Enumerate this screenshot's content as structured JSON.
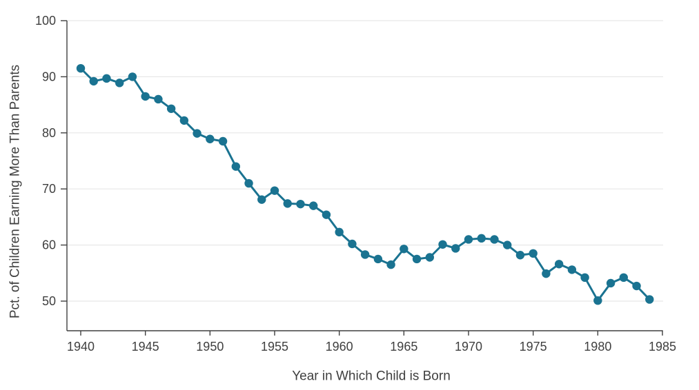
{
  "chart_data": {
    "type": "line",
    "title": "",
    "xlabel": "Year in Which Child is Born",
    "ylabel": "Pct. of Children Earning More Than Parents",
    "x": [
      1940,
      1941,
      1942,
      1943,
      1944,
      1945,
      1946,
      1947,
      1948,
      1949,
      1950,
      1951,
      1952,
      1953,
      1954,
      1955,
      1956,
      1957,
      1958,
      1959,
      1960,
      1961,
      1962,
      1963,
      1964,
      1965,
      1966,
      1967,
      1968,
      1969,
      1970,
      1971,
      1972,
      1973,
      1974,
      1975,
      1976,
      1977,
      1978,
      1979,
      1980,
      1981,
      1982,
      1983,
      1984
    ],
    "values": [
      91.5,
      89.2,
      89.7,
      88.9,
      90.0,
      86.5,
      86.0,
      84.3,
      82.2,
      79.9,
      78.9,
      78.5,
      74.0,
      71.0,
      68.1,
      69.7,
      67.4,
      67.3,
      67.0,
      65.4,
      62.3,
      60.2,
      58.3,
      57.5,
      56.5,
      59.3,
      57.5,
      57.8,
      60.1,
      59.4,
      61.0,
      61.2,
      61.0,
      60.0,
      58.2,
      58.5,
      54.9,
      56.6,
      55.6,
      54.2,
      50.1,
      53.2,
      54.2,
      52.7,
      50.3
    ],
    "xlim": [
      1940,
      1985
    ],
    "ylim": [
      50,
      100
    ],
    "xticks": [
      1940,
      1945,
      1950,
      1955,
      1960,
      1965,
      1970,
      1975,
      1980,
      1985
    ],
    "yticks": [
      50,
      60,
      70,
      80,
      90,
      100
    ],
    "grid": "horizontal",
    "legend": "none",
    "marker": "circle",
    "colors": {
      "line": "#1a7391",
      "marker": "#1a7391",
      "grid": "#e7e7e7",
      "axis": "#3f3f3f",
      "text": "#3f3f3f",
      "background": "#ffffff"
    }
  }
}
